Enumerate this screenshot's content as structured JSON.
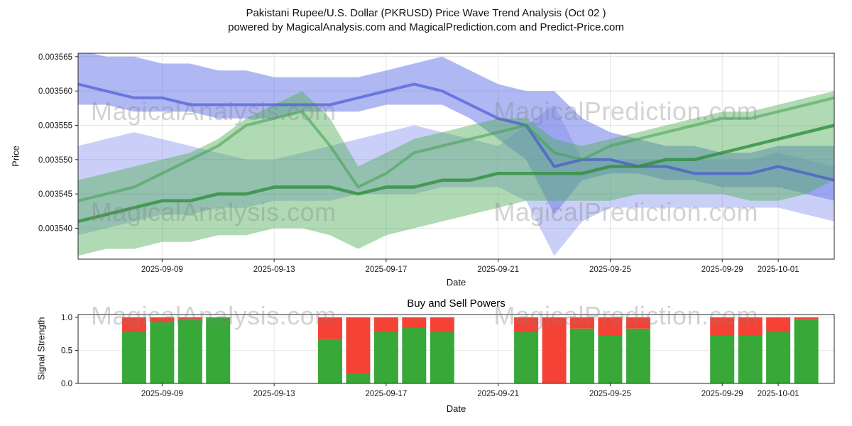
{
  "title": {
    "line1": "Pakistani Rupee/U.S. Dollar (PKRUSD) Price Wave Trend Analysis (Oct 02 )",
    "line2": "powered by MagicalAnalysis.com and MagicalPrediction.com and Predict-Price.com"
  },
  "watermarks": {
    "left": "MagicalAnalysis.com",
    "right": "MagicalPrediction.com"
  },
  "price_chart": {
    "ylabel": "Price",
    "xlabel": "Date"
  },
  "signal_chart": {
    "title": "Buy and Sell Powers",
    "ylabel": "Signal Strength",
    "xlabel": "Date"
  },
  "chart_data": [
    {
      "type": "area",
      "name": "price-wave-trend",
      "title": "Pakistani Rupee/U.S. Dollar (PKRUSD) Price Wave Trend Analysis",
      "xlabel": "Date",
      "ylabel": "Price",
      "grid": true,
      "legend_position": "none",
      "ylim": [
        0.0035355,
        0.0035655
      ],
      "yticks": [
        0.00354,
        0.003545,
        0.00355,
        0.003555,
        0.00356,
        0.003565
      ],
      "ytick_labels": [
        "0.003540",
        "0.003545",
        "0.003550",
        "0.003555",
        "0.003560",
        "0.003565"
      ],
      "x_dates": [
        "2025-09-06",
        "2025-09-07",
        "2025-09-08",
        "2025-09-09",
        "2025-09-10",
        "2025-09-11",
        "2025-09-12",
        "2025-09-13",
        "2025-09-14",
        "2025-09-15",
        "2025-09-16",
        "2025-09-17",
        "2025-09-18",
        "2025-09-19",
        "2025-09-20",
        "2025-09-21",
        "2025-09-22",
        "2025-09-23",
        "2025-09-24",
        "2025-09-25",
        "2025-09-26",
        "2025-09-27",
        "2025-09-28",
        "2025-09-29",
        "2025-09-30",
        "2025-10-01",
        "2025-10-02",
        "2025-10-03"
      ],
      "xticks": [
        "2025-09-09",
        "2025-09-13",
        "2025-09-17",
        "2025-09-21",
        "2025-09-25",
        "2025-09-29",
        "2025-10-01"
      ],
      "bands": [
        {
          "name": "blue-upper-trend-band",
          "color": "#6272e8",
          "opacity": 0.5,
          "upper": [
            0.003566,
            0.003565,
            0.003565,
            0.003564,
            0.003564,
            0.003563,
            0.003563,
            0.003562,
            0.003562,
            0.003562,
            0.003562,
            0.003563,
            0.003564,
            0.003565,
            0.003563,
            0.003561,
            0.00356,
            0.00356,
            0.003556,
            0.003554,
            0.003553,
            0.003552,
            0.003552,
            0.003551,
            0.003551,
            0.003552,
            0.003552,
            0.003552
          ],
          "lower": [
            0.003558,
            0.003558,
            0.003557,
            0.003557,
            0.003557,
            0.003556,
            0.003556,
            0.003556,
            0.003557,
            0.003557,
            0.003557,
            0.003558,
            0.003558,
            0.003558,
            0.003556,
            0.003553,
            0.00355,
            0.003542,
            0.003547,
            0.003548,
            0.003548,
            0.003547,
            0.003547,
            0.003546,
            0.003546,
            0.003546,
            0.003545,
            0.003544
          ]
        },
        {
          "name": "blue-lower-trend-band",
          "color": "#7b88ec",
          "opacity": 0.4,
          "upper": [
            0.003552,
            0.003553,
            0.003554,
            0.003553,
            0.003552,
            0.003551,
            0.00355,
            0.00355,
            0.003551,
            0.003552,
            0.003553,
            0.003554,
            0.003555,
            0.003554,
            0.003553,
            0.003552,
            0.003555,
            0.003558,
            0.00355,
            0.00355,
            0.00355,
            0.00355,
            0.00355,
            0.00355,
            0.00355,
            0.003551,
            0.00355,
            0.003549
          ],
          "lower": [
            0.003539,
            0.00354,
            0.003541,
            0.003542,
            0.003542,
            0.003543,
            0.003543,
            0.003544,
            0.003544,
            0.003544,
            0.003545,
            0.003545,
            0.003545,
            0.003546,
            0.003546,
            0.003546,
            0.003544,
            0.003536,
            0.003541,
            0.003543,
            0.003543,
            0.003543,
            0.003543,
            0.003543,
            0.003543,
            0.003543,
            0.003542,
            0.003541
          ]
        },
        {
          "name": "green-trend-band",
          "color": "#4fae57",
          "opacity": 0.45,
          "upper": [
            0.003547,
            0.003548,
            0.003549,
            0.00355,
            0.003551,
            0.003553,
            0.003556,
            0.003558,
            0.00356,
            0.003556,
            0.003549,
            0.003551,
            0.003553,
            0.003554,
            0.003555,
            0.003556,
            0.003556,
            0.003553,
            0.003552,
            0.003553,
            0.003554,
            0.003555,
            0.003556,
            0.003557,
            0.003557,
            0.003558,
            0.003559,
            0.00356
          ],
          "lower": [
            0.003536,
            0.003537,
            0.003537,
            0.003538,
            0.003538,
            0.003539,
            0.003539,
            0.00354,
            0.00354,
            0.003539,
            0.003537,
            0.003539,
            0.00354,
            0.003541,
            0.003542,
            0.003543,
            0.003544,
            0.003544,
            0.003544,
            0.003544,
            0.003545,
            0.003545,
            0.003545,
            0.003545,
            0.003544,
            0.003544,
            0.003545,
            0.003547
          ]
        }
      ],
      "lines": [
        {
          "name": "blue-trend-line",
          "color": "#3a49d6",
          "opacity": 0.6,
          "width": 4,
          "values": [
            0.003561,
            0.00356,
            0.003559,
            0.003559,
            0.003558,
            0.003558,
            0.003558,
            0.003558,
            0.003558,
            0.003558,
            0.003559,
            0.00356,
            0.003561,
            0.00356,
            0.003558,
            0.003556,
            0.003555,
            0.003549,
            0.00355,
            0.00355,
            0.003549,
            0.003549,
            0.003548,
            0.003548,
            0.003548,
            0.003549,
            0.003548,
            0.003547
          ]
        },
        {
          "name": "green-fast-trend-line",
          "color": "#3fa04d",
          "opacity": 0.55,
          "width": 4,
          "values": [
            0.003544,
            0.003545,
            0.003546,
            0.003548,
            0.00355,
            0.003552,
            0.003555,
            0.003556,
            0.003557,
            0.003552,
            0.003546,
            0.003548,
            0.003551,
            0.003552,
            0.003553,
            0.003554,
            0.003555,
            0.003551,
            0.00355,
            0.003552,
            0.003553,
            0.003554,
            0.003555,
            0.003556,
            0.003556,
            0.003557,
            0.003558,
            0.003559
          ]
        },
        {
          "name": "green-slow-trend-line",
          "color": "#2f8f3c",
          "opacity": 0.8,
          "width": 4.5,
          "values": [
            0.003541,
            0.003542,
            0.003543,
            0.003544,
            0.003544,
            0.003545,
            0.003545,
            0.003546,
            0.003546,
            0.003546,
            0.003545,
            0.003546,
            0.003546,
            0.003547,
            0.003547,
            0.003548,
            0.003548,
            0.003548,
            0.003548,
            0.003549,
            0.003549,
            0.00355,
            0.00355,
            0.003551,
            0.003552,
            0.003553,
            0.003554,
            0.003555
          ]
        }
      ]
    },
    {
      "type": "bar",
      "name": "buy-sell-powers",
      "title": "Buy and Sell Powers",
      "xlabel": "Date",
      "ylabel": "Signal Strength",
      "stacked": true,
      "grid": true,
      "ylim": [
        0,
        1
      ],
      "yticks": [
        0,
        0.5,
        1
      ],
      "ytick_labels": [
        "0.0",
        "0.5",
        "1.0"
      ],
      "xticks": [
        "2025-09-09",
        "2025-09-13",
        "2025-09-17",
        "2025-09-21",
        "2025-09-25",
        "2025-09-29",
        "2025-10-01"
      ],
      "categories": [
        "2025-09-08",
        "2025-09-09",
        "2025-09-10",
        "2025-09-11",
        "2025-09-15",
        "2025-09-16",
        "2025-09-17",
        "2025-09-18",
        "2025-09-19",
        "2025-09-22",
        "2025-09-23",
        "2025-09-24",
        "2025-09-25",
        "2025-09-26",
        "2025-09-29",
        "2025-09-30",
        "2025-10-01",
        "2025-10-02"
      ],
      "series": [
        {
          "name": "Buy",
          "color": "#38a838",
          "values": [
            0.78,
            0.93,
            0.97,
            1.0,
            0.67,
            0.15,
            0.78,
            0.85,
            0.78,
            0.78,
            0.0,
            0.83,
            0.72,
            0.83,
            0.72,
            0.72,
            0.78,
            0.97
          ]
        },
        {
          "name": "Sell",
          "color": "#f44336",
          "values": [
            0.22,
            0.07,
            0.03,
            0.0,
            0.33,
            0.85,
            0.22,
            0.15,
            0.22,
            0.22,
            1.0,
            0.17,
            0.28,
            0.17,
            0.28,
            0.28,
            0.22,
            0.03
          ]
        }
      ]
    }
  ]
}
